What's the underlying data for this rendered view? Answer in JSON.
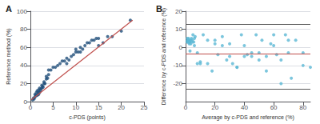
{
  "chart_data": [
    {
      "type": "scatter",
      "title": "A",
      "xlabel": "c-PDS (points)",
      "ylabel": "Reference method (%)",
      "xlim": [
        0,
        25
      ],
      "ylim": [
        0,
        100
      ],
      "xticks": [
        0,
        5,
        10,
        15,
        20,
        25
      ],
      "yticks": [
        0,
        20,
        40,
        60,
        80,
        100
      ],
      "grid": true,
      "series": [
        {
          "type": "scatter",
          "color": "#1F4E79",
          "x": [
            0.5,
            0.7,
            0.8,
            1.0,
            1.0,
            1.2,
            1.3,
            1.5,
            1.5,
            1.7,
            1.8,
            1.8,
            2.0,
            2.0,
            2.2,
            2.3,
            2.5,
            2.5,
            2.7,
            2.8,
            3.0,
            3.0,
            3.2,
            3.5,
            3.5,
            3.8,
            4.0,
            4.0,
            4.5,
            5.0,
            5.5,
            6.0,
            6.5,
            7.0,
            7.5,
            8.0,
            8.0,
            8.5,
            9.0,
            9.5,
            10.0,
            10.0,
            10.5,
            11.0,
            11.0,
            11.5,
            12.0,
            12.5,
            13.0,
            13.5,
            14.0,
            14.5,
            15.0,
            15.0,
            16.0,
            17.0,
            18.0,
            20.0,
            22.0
          ],
          "values": [
            2,
            4,
            3,
            5,
            8,
            7,
            10,
            12,
            7,
            10,
            13,
            8,
            15,
            10,
            12,
            14,
            18,
            15,
            17,
            16,
            20,
            22,
            20,
            25,
            28,
            26,
            30,
            35,
            35,
            38,
            38,
            40,
            42,
            45,
            45,
            48,
            42,
            46,
            50,
            52,
            55,
            58,
            55,
            60,
            55,
            58,
            62,
            65,
            65,
            68,
            68,
            70,
            70,
            62,
            65,
            72,
            72,
            78,
            90
          ]
        },
        {
          "type": "line",
          "color": "#C0504D",
          "x": [
            0.2,
            22.5
          ],
          "values": [
            2,
            90
          ]
        }
      ]
    },
    {
      "type": "scatter",
      "title": "B",
      "xlabel": "Average by c-PDS and reference (%)",
      "ylabel": "Difference by c-PDS and reference (%)",
      "xlim": [
        0,
        85
      ],
      "ylim": [
        -30,
        20
      ],
      "xticks": [
        0,
        20,
        40,
        60,
        80
      ],
      "yticks": [
        -20,
        -10,
        0,
        10,
        20
      ],
      "grid": true,
      "series": [
        {
          "type": "scatter",
          "color": "#5BB8D4",
          "x": [
            1.0,
            1.2,
            1.5,
            1.8,
            2.0,
            2.2,
            2.5,
            2.8,
            3.0,
            3.5,
            4.0,
            4.5,
            5.0,
            5.5,
            6.0,
            6.5,
            8.0,
            10.0,
            12.0,
            15.0,
            18.0,
            20.0,
            22.0,
            25.0,
            28.0,
            30.0,
            32.0,
            35.0,
            38.0,
            40.0,
            42.0,
            45.0,
            48.0,
            50.0,
            52.0,
            55.0,
            58.0,
            60.0,
            62.0,
            65.0,
            68.0,
            70.0,
            72.0,
            75.0,
            80.0,
            85.0,
            1.3,
            1.7,
            2.3,
            2.7,
            3.5,
            4.5,
            6.0,
            8.0,
            10.0,
            15.0,
            20.0,
            25.0,
            30.0,
            35.0,
            40.0,
            45.0,
            50.0,
            55.0,
            60.0,
            65.0,
            70.0,
            80.0
          ],
          "values": [
            3,
            5,
            4,
            3,
            5,
            4,
            2,
            3,
            -2,
            4,
            5,
            4,
            7,
            3,
            1,
            6,
            -3,
            -8,
            7,
            -9,
            -13,
            4,
            -4,
            6,
            -7,
            2,
            -9,
            -11,
            7,
            1,
            -4,
            -3,
            7,
            -7,
            4,
            -13,
            2,
            1,
            -4,
            -7,
            7,
            -3,
            -17,
            4,
            -3,
            -11,
            4,
            3,
            4,
            3,
            2,
            3,
            5,
            -9,
            -9,
            4,
            2,
            1,
            -5,
            -11,
            -5,
            -5,
            -3,
            -5,
            7,
            -20,
            4,
            -10
          ]
        }
      ],
      "reference_lines": [
        {
          "y": -3.5,
          "color": "#C0504D"
        },
        {
          "y": 13.0,
          "color": "#595959"
        },
        {
          "y": -23.0,
          "color": "#595959"
        }
      ]
    }
  ]
}
